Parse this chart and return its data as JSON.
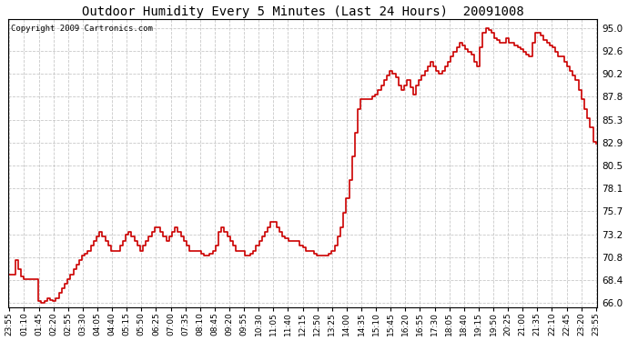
{
  "title": "Outdoor Humidity Every 5 Minutes (Last 24 Hours)  20091008",
  "copyright": "Copyright 2009 Cartronics.com",
  "line_color": "#cc0000",
  "background_color": "#ffffff",
  "grid_color": "#bbbbbb",
  "yticks": [
    66.0,
    68.4,
    70.8,
    73.2,
    75.7,
    78.1,
    80.5,
    82.9,
    85.3,
    87.8,
    90.2,
    92.6,
    95.0
  ],
  "ylim": [
    65.5,
    96.0
  ],
  "x_labels": [
    "23:55",
    "01:10",
    "01:45",
    "02:20",
    "02:55",
    "03:30",
    "04:05",
    "04:40",
    "05:15",
    "05:50",
    "06:25",
    "07:00",
    "07:35",
    "08:10",
    "08:45",
    "09:20",
    "09:55",
    "10:30",
    "11:05",
    "11:40",
    "12:15",
    "12:50",
    "13:25",
    "14:00",
    "14:35",
    "15:10",
    "15:45",
    "16:20",
    "16:55",
    "17:30",
    "18:05",
    "18:40",
    "19:15",
    "19:50",
    "20:25",
    "21:00",
    "21:35",
    "22:10",
    "22:45",
    "23:20",
    "23:55"
  ],
  "humidity_values": [
    69.0,
    69.0,
    70.5,
    69.5,
    68.8,
    68.5,
    68.5,
    68.5,
    68.5,
    68.5,
    66.2,
    66.0,
    66.2,
    66.5,
    66.3,
    66.2,
    66.5,
    67.0,
    67.5,
    68.0,
    68.5,
    69.0,
    69.5,
    70.0,
    70.5,
    71.0,
    71.2,
    71.5,
    72.0,
    72.5,
    73.0,
    73.5,
    73.0,
    72.5,
    72.0,
    71.5,
    71.5,
    71.5,
    72.0,
    72.5,
    73.2,
    73.5,
    73.0,
    72.5,
    72.0,
    71.5,
    72.0,
    72.5,
    73.0,
    73.5,
    74.0,
    74.0,
    73.5,
    73.0,
    72.5,
    73.0,
    73.5,
    74.0,
    73.5,
    73.0,
    72.5,
    72.0,
    71.5,
    71.5,
    71.5,
    71.5,
    71.2,
    71.0,
    71.0,
    71.2,
    71.5,
    72.0,
    73.5,
    74.0,
    73.5,
    73.0,
    72.5,
    72.0,
    71.5,
    71.5,
    71.5,
    71.0,
    71.0,
    71.2,
    71.5,
    72.0,
    72.5,
    73.0,
    73.5,
    74.0,
    74.5,
    74.5,
    74.0,
    73.5,
    73.0,
    72.8,
    72.5,
    72.5,
    72.5,
    72.5,
    72.0,
    71.8,
    71.5,
    71.5,
    71.5,
    71.2,
    71.0,
    71.0,
    71.0,
    71.0,
    71.2,
    71.5,
    72.0,
    73.0,
    74.0,
    75.5,
    77.0,
    79.0,
    81.5,
    84.0,
    86.5,
    87.5,
    87.5,
    87.5,
    87.5,
    87.8,
    88.0,
    88.5,
    89.0,
    89.5,
    90.0,
    90.5,
    90.2,
    89.8,
    89.0,
    88.5,
    89.0,
    89.5,
    88.8,
    88.0,
    89.0,
    89.5,
    90.0,
    90.5,
    91.0,
    91.5,
    91.0,
    90.5,
    90.2,
    90.5,
    91.0,
    91.5,
    92.0,
    92.5,
    93.0,
    93.5,
    93.2,
    92.8,
    92.5,
    92.2,
    91.5,
    91.0,
    93.0,
    94.5,
    95.0,
    94.8,
    94.5,
    94.0,
    93.8,
    93.5,
    93.5,
    94.0,
    93.5,
    93.5,
    93.2,
    93.0,
    92.8,
    92.5,
    92.2,
    92.0,
    93.5,
    94.5,
    94.5,
    94.2,
    93.8,
    93.5,
    93.2,
    93.0,
    92.5,
    92.0,
    92.0,
    91.5,
    91.0,
    90.5,
    90.0,
    89.5,
    88.5,
    87.5,
    86.5,
    85.5,
    84.5,
    83.0,
    82.8
  ]
}
